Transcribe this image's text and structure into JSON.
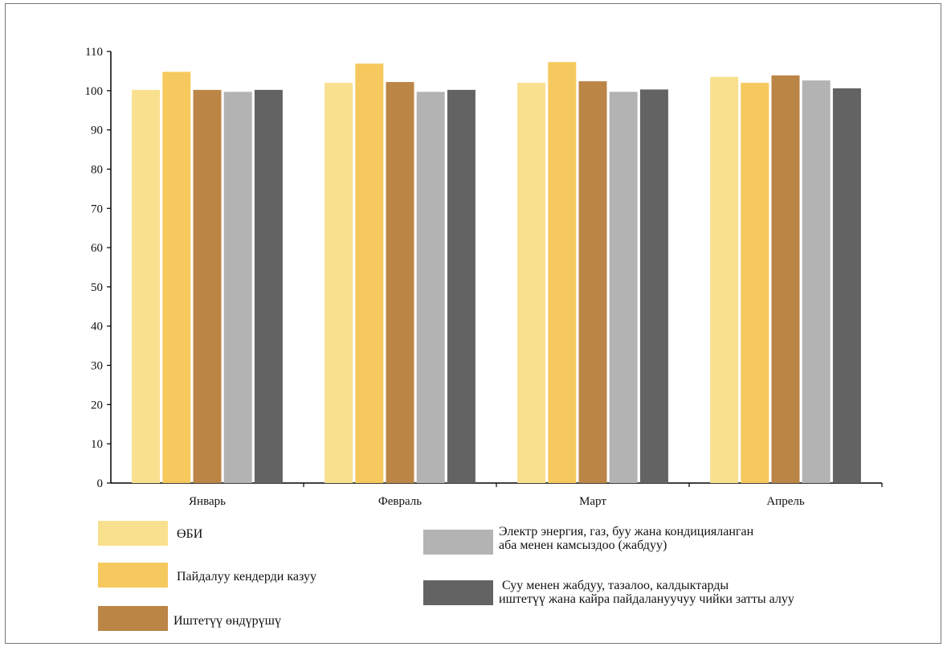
{
  "chart_data": {
    "type": "bar",
    "categories": [
      "Январь",
      "Февраль",
      "Март",
      "Апрель"
    ],
    "ylim": [
      0,
      110
    ],
    "yticks": [
      0,
      10,
      20,
      30,
      40,
      50,
      60,
      70,
      80,
      90,
      100,
      110
    ],
    "grid": false,
    "legend_position": "bottom",
    "series": [
      {
        "name": "ӨБИ",
        "color": "#f8e08f",
        "values": [
          100.2,
          102.0,
          102.0,
          103.5
        ]
      },
      {
        "name": "Пайдалуу кендерди казуу",
        "color": "#f6c95e",
        "values": [
          104.8,
          106.9,
          107.3,
          102.0
        ]
      },
      {
        "name": "Иштетүү өндүрүшү",
        "color": "#bb8546",
        "values": [
          100.2,
          102.2,
          102.4,
          103.9
        ]
      },
      {
        "name": "Электр энергия, газ, буу жана кондицияланган аба менен камсыздоо (жабдуу)",
        "name_lines": [
          "Электр энергия, газ, буу жана кондицияланган",
          "аба менен камсыздоо (жабдуу)"
        ],
        "color": "#b3b3b3",
        "values": [
          99.7,
          99.7,
          99.7,
          102.6
        ]
      },
      {
        "name": "Суу менен жабдуу, тазалоо, калдыктарды иштетүү жана кайра пайдалануучуу чийки затты алуу",
        "name_lines": [
          " Суу менен жабдуу, тазалоо, калдыктарды",
          "иштетүү жана кайра пайдалануучуу чийки затты алуу"
        ],
        "color": "#636363",
        "values": [
          100.2,
          100.2,
          100.3,
          100.6
        ]
      }
    ]
  }
}
